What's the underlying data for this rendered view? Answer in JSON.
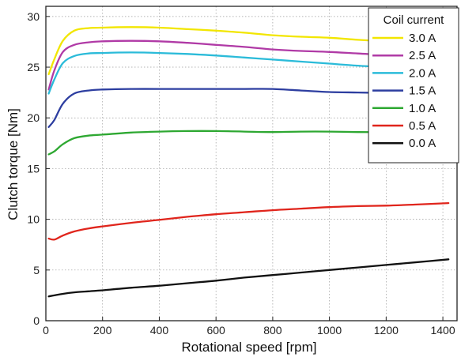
{
  "chart_data": {
    "type": "line",
    "title": "",
    "xlabel": "Rotational speed [rpm]",
    "ylabel": "Clutch torque [Nm]",
    "xlim": [
      0,
      1450
    ],
    "ylim": [
      0,
      31
    ],
    "xticks": [
      0,
      200,
      400,
      600,
      800,
      1000,
      1200,
      1400
    ],
    "yticks": [
      0,
      5,
      10,
      15,
      20,
      25,
      30
    ],
    "grid": true,
    "legend_title": "Coil current",
    "legend_position": "top-right",
    "series": [
      {
        "name": "3.0 A",
        "color": "#f2e600",
        "x": [
          10,
          30,
          60,
          100,
          150,
          200,
          300,
          400,
          500,
          600,
          700,
          800,
          900,
          1000,
          1100,
          1200,
          1300,
          1420
        ],
        "y": [
          24.3,
          25.8,
          27.6,
          28.6,
          28.85,
          28.9,
          28.95,
          28.9,
          28.75,
          28.6,
          28.4,
          28.15,
          28.0,
          27.9,
          27.7,
          27.55,
          27.4,
          27.3
        ]
      },
      {
        "name": "2.5 A",
        "color": "#b03aa6",
        "x": [
          10,
          30,
          60,
          100,
          150,
          200,
          300,
          400,
          500,
          600,
          700,
          800,
          900,
          1000,
          1100,
          1200,
          1300,
          1420
        ],
        "y": [
          22.8,
          24.7,
          26.5,
          27.2,
          27.45,
          27.55,
          27.6,
          27.55,
          27.4,
          27.2,
          27.0,
          26.75,
          26.6,
          26.5,
          26.35,
          26.2,
          26.1,
          26.0
        ]
      },
      {
        "name": "2.0 A",
        "color": "#2bbbd9",
        "x": [
          10,
          30,
          60,
          100,
          150,
          200,
          300,
          400,
          500,
          600,
          700,
          800,
          900,
          1000,
          1100,
          1200,
          1300,
          1420
        ],
        "y": [
          22.4,
          23.8,
          25.4,
          26.1,
          26.35,
          26.4,
          26.45,
          26.4,
          26.3,
          26.15,
          25.95,
          25.75,
          25.55,
          25.35,
          25.15,
          25.0,
          24.85,
          24.7
        ]
      },
      {
        "name": "1.5 A",
        "color": "#2d3ea0",
        "x": [
          10,
          30,
          60,
          100,
          150,
          200,
          300,
          400,
          500,
          600,
          700,
          800,
          900,
          1000,
          1100,
          1200,
          1300,
          1420
        ],
        "y": [
          19.1,
          19.8,
          21.4,
          22.4,
          22.7,
          22.8,
          22.85,
          22.85,
          22.85,
          22.85,
          22.85,
          22.85,
          22.7,
          22.55,
          22.5,
          22.45,
          22.4,
          22.4
        ]
      },
      {
        "name": "1.0 A",
        "color": "#2ea832",
        "x": [
          10,
          30,
          60,
          100,
          150,
          200,
          300,
          400,
          500,
          600,
          700,
          800,
          900,
          1000,
          1100,
          1200,
          1300,
          1420
        ],
        "y": [
          16.4,
          16.7,
          17.4,
          18.0,
          18.25,
          18.35,
          18.55,
          18.65,
          18.7,
          18.7,
          18.65,
          18.6,
          18.65,
          18.65,
          18.6,
          18.6,
          18.6,
          18.6
        ]
      },
      {
        "name": "0.5 A",
        "color": "#e0251c",
        "x": [
          10,
          30,
          60,
          100,
          150,
          200,
          300,
          400,
          500,
          600,
          700,
          800,
          900,
          1000,
          1100,
          1200,
          1300,
          1420
        ],
        "y": [
          8.1,
          8.0,
          8.4,
          8.8,
          9.1,
          9.3,
          9.65,
          9.95,
          10.25,
          10.5,
          10.7,
          10.9,
          11.05,
          11.2,
          11.3,
          11.35,
          11.45,
          11.6
        ]
      },
      {
        "name": "0.0 A",
        "color": "#111111",
        "x": [
          10,
          30,
          60,
          100,
          150,
          200,
          300,
          400,
          500,
          600,
          700,
          800,
          900,
          1000,
          1100,
          1200,
          1300,
          1420
        ],
        "y": [
          2.4,
          2.5,
          2.65,
          2.8,
          2.9,
          3.0,
          3.25,
          3.45,
          3.7,
          3.95,
          4.25,
          4.5,
          4.75,
          5.0,
          5.25,
          5.5,
          5.75,
          6.05
        ]
      }
    ]
  }
}
